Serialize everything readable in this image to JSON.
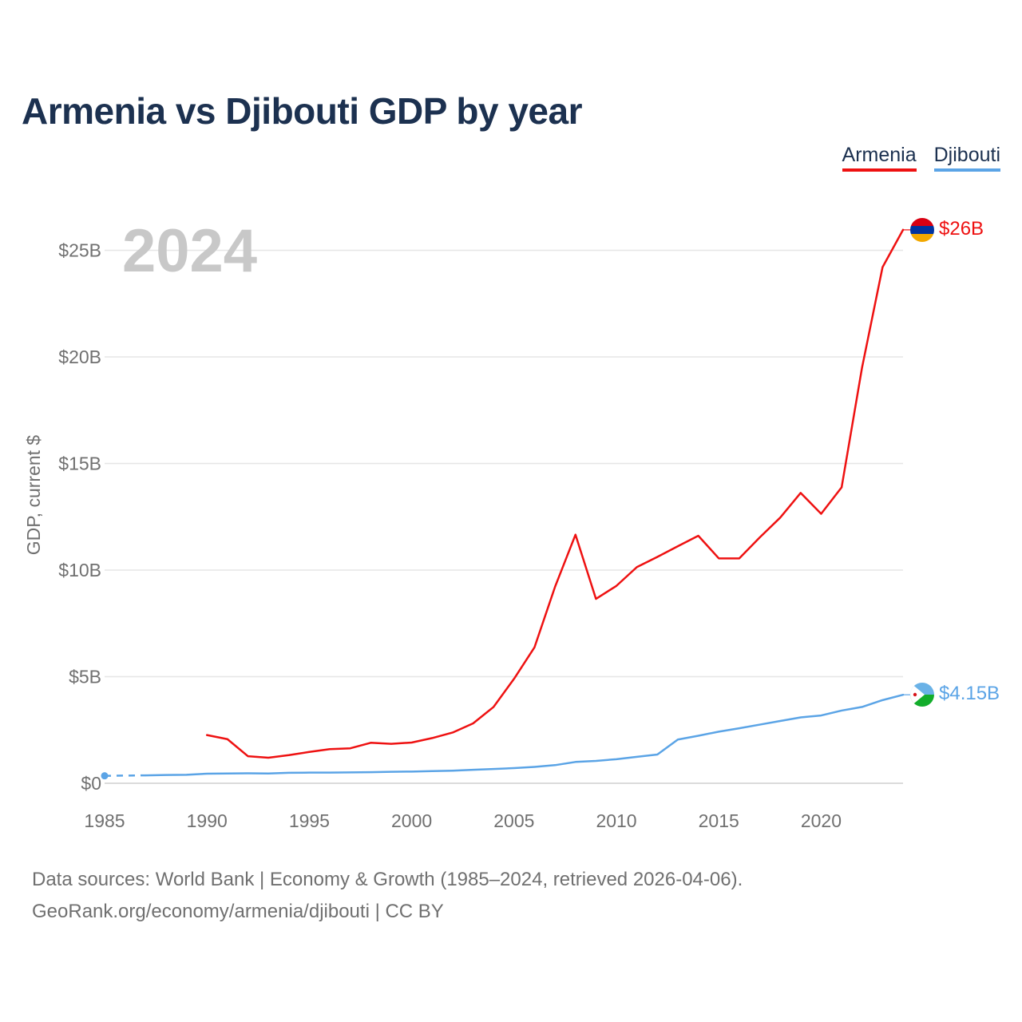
{
  "title": "Armenia vs Djibouti GDP by year",
  "legend": [
    {
      "name": "Armenia",
      "color": "#ee1111"
    },
    {
      "name": "Djibouti",
      "color": "#5ba4e6"
    }
  ],
  "year_watermark": "2024",
  "footer": {
    "line1": "Data sources: World Bank | Economy & Growth (1985–2024, retrieved 2026-04-06).",
    "line2": "GeoRank.org/economy/armenia/djibouti | CC BY"
  },
  "chart_data": {
    "type": "line",
    "title": "Armenia vs Djibouti GDP by year",
    "xlabel": "",
    "ylabel": "GDP, current $",
    "xlim": [
      1985,
      2024
    ],
    "ylim": [
      0,
      26.5
    ],
    "x_ticks": [
      1985,
      1990,
      1995,
      2000,
      2005,
      2010,
      2015,
      2020
    ],
    "y_ticks": [
      {
        "value": 0,
        "label": "$0"
      },
      {
        "value": 5,
        "label": "$5B"
      },
      {
        "value": 10,
        "label": "$10B"
      },
      {
        "value": 15,
        "label": "$15B"
      },
      {
        "value": 20,
        "label": "$20B"
      },
      {
        "value": 25,
        "label": "$25B"
      }
    ],
    "grid": true,
    "units": "billions of current US$",
    "series": [
      {
        "name": "Armenia",
        "color": "#ee1111",
        "end_label": "$26B",
        "x": [
          1990,
          1991,
          1992,
          1993,
          1994,
          1995,
          1996,
          1997,
          1998,
          1999,
          2000,
          2001,
          2002,
          2003,
          2004,
          2005,
          2006,
          2007,
          2008,
          2009,
          2010,
          2011,
          2012,
          2013,
          2014,
          2015,
          2016,
          2017,
          2018,
          2019,
          2020,
          2021,
          2022,
          2023,
          2024
        ],
        "values": [
          2.26,
          2.07,
          1.27,
          1.2,
          1.32,
          1.47,
          1.6,
          1.64,
          1.9,
          1.85,
          1.91,
          2.12,
          2.38,
          2.81,
          3.58,
          4.9,
          6.38,
          9.21,
          11.66,
          8.65,
          9.26,
          10.14,
          10.62,
          11.12,
          11.61,
          10.55,
          10.55,
          11.53,
          12.46,
          13.62,
          12.64,
          13.88,
          19.51,
          24.21,
          25.96
        ]
      },
      {
        "name": "Djibouti",
        "color": "#5ba4e6",
        "end_label": "$4.15B",
        "dashed_until": 1987,
        "x": [
          1985,
          1987,
          1988,
          1989,
          1990,
          1991,
          1992,
          1993,
          1994,
          1995,
          1996,
          1997,
          1998,
          1999,
          2000,
          2001,
          2002,
          2003,
          2004,
          2005,
          2006,
          2007,
          2008,
          2009,
          2010,
          2011,
          2012,
          2013,
          2014,
          2015,
          2016,
          2017,
          2018,
          2019,
          2020,
          2021,
          2022,
          2023,
          2024
        ],
        "values": [
          0.35,
          0.37,
          0.39,
          0.4,
          0.45,
          0.46,
          0.47,
          0.46,
          0.49,
          0.5,
          0.5,
          0.51,
          0.52,
          0.54,
          0.55,
          0.57,
          0.59,
          0.63,
          0.67,
          0.71,
          0.77,
          0.85,
          1.0,
          1.05,
          1.13,
          1.24,
          1.35,
          2.05,
          2.23,
          2.42,
          2.58,
          2.75,
          2.92,
          3.09,
          3.18,
          3.41,
          3.58,
          3.9,
          4.15
        ]
      }
    ]
  }
}
